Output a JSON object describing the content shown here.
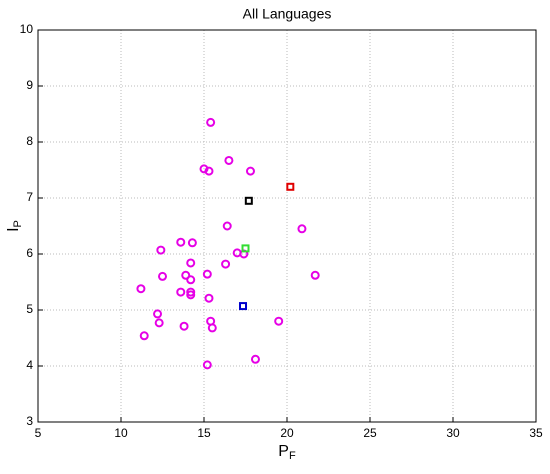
{
  "chart_data": {
    "type": "scatter",
    "title": "All Languages",
    "xlabel": "P",
    "xlabel_sub": "F",
    "ylabel": "I",
    "ylabel_sub": "P",
    "xlim": [
      5,
      35
    ],
    "ylim": [
      3,
      10
    ],
    "xticks": [
      5,
      10,
      15,
      20,
      25,
      30,
      35
    ],
    "yticks": [
      3,
      4,
      5,
      6,
      7,
      8,
      9,
      10
    ],
    "grid": true,
    "series": [
      {
        "color": "#e600e6",
        "marker": "circle",
        "x": [
          15.4,
          16.5,
          15.0,
          15.3,
          17.8,
          20.9,
          16.4,
          13.6,
          14.3,
          12.4,
          17.0,
          17.4,
          16.3,
          14.2,
          21.7,
          12.5,
          13.9,
          15.2,
          14.2,
          11.2,
          13.6,
          14.2,
          14.2,
          15.3,
          12.2,
          12.3,
          15.4,
          19.5,
          13.8,
          15.5,
          11.4,
          18.1,
          15.2
        ],
        "y": [
          8.35,
          7.67,
          7.52,
          7.48,
          7.48,
          6.45,
          6.5,
          6.21,
          6.2,
          6.07,
          6.02,
          6.0,
          5.82,
          5.84,
          5.62,
          5.6,
          5.62,
          5.64,
          5.54,
          5.38,
          5.32,
          5.32,
          5.27,
          5.21,
          4.93,
          4.77,
          4.8,
          4.8,
          4.71,
          4.68,
          4.54,
          4.12,
          4.02
        ]
      },
      {
        "color": "#e00000",
        "marker": "square",
        "x": [
          20.2
        ],
        "y": [
          7.2
        ]
      },
      {
        "color": "#000000",
        "marker": "square",
        "x": [
          17.7
        ],
        "y": [
          6.95
        ]
      },
      {
        "color": "#33dd33",
        "marker": "square",
        "x": [
          17.5
        ],
        "y": [
          6.1
        ]
      },
      {
        "color": "#0000cc",
        "marker": "square",
        "x": [
          17.35
        ],
        "y": [
          5.07
        ]
      }
    ]
  }
}
